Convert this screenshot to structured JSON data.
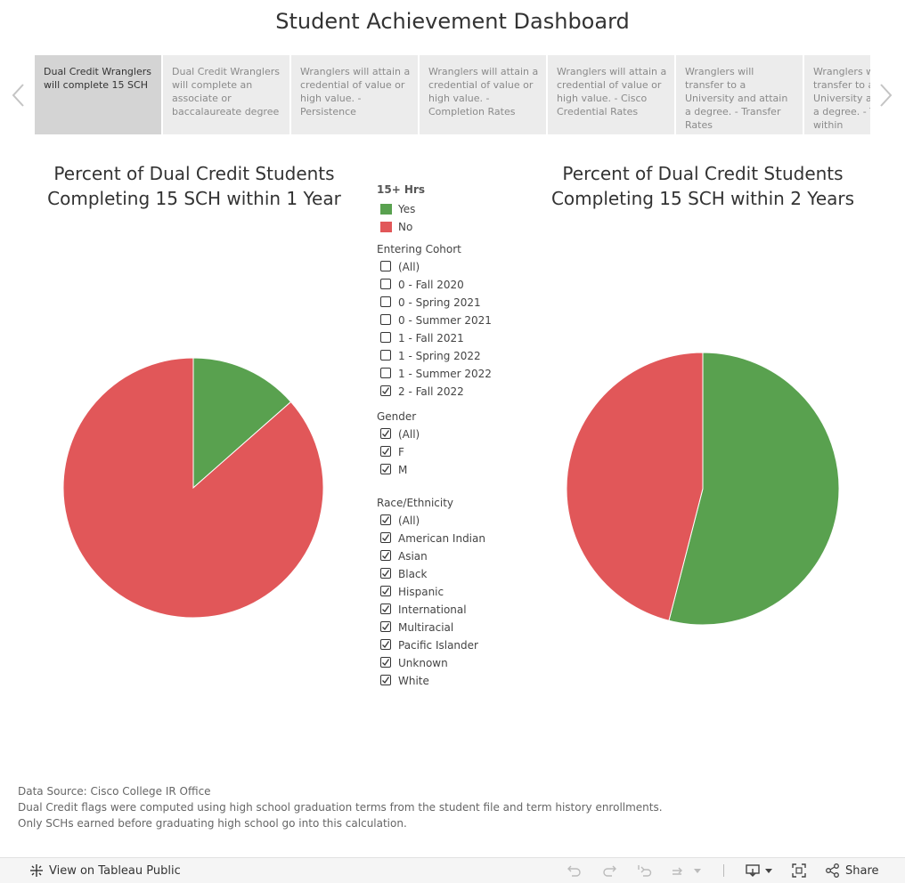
{
  "dashboard": {
    "title": "Student Achievement Dashboard"
  },
  "story_tabs": [
    {
      "label": "Dual Credit Wranglers will complete 15 SCH",
      "active": true
    },
    {
      "label": "Dual Credit Wranglers will complete an associate or baccalaureate degree",
      "active": false
    },
    {
      "label": "Wranglers will attain a credential of value or high value. - Persistence",
      "active": false
    },
    {
      "label": "Wranglers will attain a credential of value or high value. - Completion Rates",
      "active": false
    },
    {
      "label": "Wranglers will attain a credential of value or high value. - Cisco Credential Rates",
      "active": false
    },
    {
      "label": "Wranglers will transfer to a University and attain a degree. - Transfer Rates",
      "active": false
    },
    {
      "label": "Wranglers will transfer to a University and attain a degree. - Transfer within",
      "active": false
    }
  ],
  "nav": {
    "prev_icon": "chevron-left-icon",
    "next_icon": "chevron-right-icon"
  },
  "colors": {
    "yes": "#59a14f",
    "no": "#e15759"
  },
  "chart_data": [
    {
      "type": "pie",
      "title": "Percent of Dual Credit Students Completing 15 SCH within 1 Year",
      "title_line1": "Percent of Dual Credit Students",
      "title_line2": "Completing 15 SCH within 1 Year",
      "slices": [
        {
          "label": "Yes",
          "value": 13.5
        },
        {
          "label": "No",
          "value": 86.5
        }
      ]
    },
    {
      "type": "pie",
      "title": "Percent of Dual Credit Students Completing 15 SCH within 2 Years",
      "title_line1": "Percent of Dual Credit Students",
      "title_line2": "Completing 15 SCH within 2 Years",
      "slices": [
        {
          "label": "Yes",
          "value": 54
        },
        {
          "label": "No",
          "value": 46
        }
      ]
    }
  ],
  "legend": {
    "title": "15+ Hrs",
    "items": [
      {
        "label": "Yes",
        "color": "#59a14f"
      },
      {
        "label": "No",
        "color": "#e15759"
      }
    ]
  },
  "filters": {
    "cohort": {
      "title": "Entering Cohort",
      "options": [
        {
          "label": "(All)",
          "checked": false
        },
        {
          "label": "0 - Fall 2020",
          "checked": false
        },
        {
          "label": "0 - Spring 2021",
          "checked": false
        },
        {
          "label": "0 - Summer 2021",
          "checked": false
        },
        {
          "label": "1 - Fall 2021",
          "checked": false
        },
        {
          "label": "1 - Spring 2022",
          "checked": false
        },
        {
          "label": "1 - Summer 2022",
          "checked": false
        },
        {
          "label": "2 - Fall 2022",
          "checked": true
        }
      ]
    },
    "gender": {
      "title": "Gender",
      "options": [
        {
          "label": "(All)",
          "checked": true
        },
        {
          "label": "F",
          "checked": true
        },
        {
          "label": "M",
          "checked": true
        }
      ]
    },
    "race": {
      "title": "Race/Ethnicity",
      "options": [
        {
          "label": "(All)",
          "checked": true
        },
        {
          "label": "American Indian",
          "checked": true
        },
        {
          "label": "Asian",
          "checked": true
        },
        {
          "label": "Black",
          "checked": true
        },
        {
          "label": "Hispanic",
          "checked": true
        },
        {
          "label": "International",
          "checked": true
        },
        {
          "label": "Multiracial",
          "checked": true
        },
        {
          "label": "Pacific Islander",
          "checked": true
        },
        {
          "label": "Unknown",
          "checked": true
        },
        {
          "label": "White",
          "checked": true
        }
      ]
    }
  },
  "footer": {
    "line1": "Data Source: Cisco College IR Office",
    "line2": "Dual Credit flags were computed using high school graduation terms from the student file and term history enrollments.",
    "line3": "Only SCHs earned before graduating high school go into this calculation."
  },
  "toolbar": {
    "view_label": "View on Tableau Public",
    "share_label": "Share"
  }
}
